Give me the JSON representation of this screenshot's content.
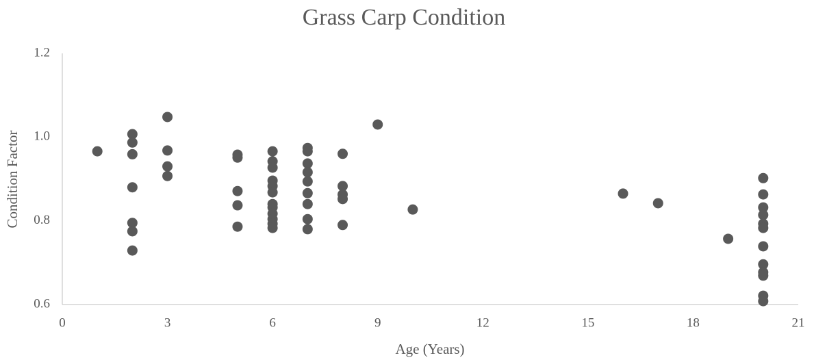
{
  "chart_data": {
    "type": "scatter",
    "title": "Grass Carp Condition",
    "x_label": "Age (Years)",
    "y_label": "Condition Factor",
    "x": [
      1,
      2,
      2,
      2,
      2,
      2,
      2,
      2,
      3,
      3,
      3,
      3,
      5,
      5,
      5,
      5,
      5,
      6,
      6,
      6,
      6,
      6,
      6,
      6,
      6,
      6,
      6,
      6,
      6,
      7,
      7,
      7,
      7,
      7,
      7,
      7,
      7,
      7,
      8,
      8,
      8,
      8,
      8,
      9,
      10,
      16,
      17,
      19,
      20,
      20,
      20,
      20,
      20,
      20,
      20,
      20,
      20,
      20,
      20,
      20
    ],
    "values": [
      0.966,
      1.007,
      0.987,
      0.959,
      0.88,
      0.795,
      0.775,
      0.729,
      1.048,
      0.968,
      0.93,
      0.907,
      0.958,
      0.951,
      0.871,
      0.837,
      0.786,
      0.966,
      0.942,
      0.927,
      0.896,
      0.883,
      0.868,
      0.84,
      0.832,
      0.817,
      0.804,
      0.793,
      0.783,
      0.974,
      0.966,
      0.937,
      0.916,
      0.894,
      0.866,
      0.84,
      0.804,
      0.78,
      0.96,
      0.883,
      0.863,
      0.852,
      0.79,
      1.03,
      0.827,
      0.865,
      0.842,
      0.757,
      0.902,
      0.863,
      0.832,
      0.814,
      0.793,
      0.783,
      0.739,
      0.696,
      0.677,
      0.669,
      0.621,
      0.608
    ],
    "color": "#595959",
    "xlim": [
      0,
      21
    ],
    "xticks": [
      0,
      3,
      6,
      9,
      12,
      15,
      18,
      21
    ],
    "ylim": [
      0.6,
      1.2
    ],
    "yticks": [
      0.6,
      0.8,
      {
        "value": 1,
        "label": "1.0"
      },
      1.2
    ],
    "grid": false
  }
}
